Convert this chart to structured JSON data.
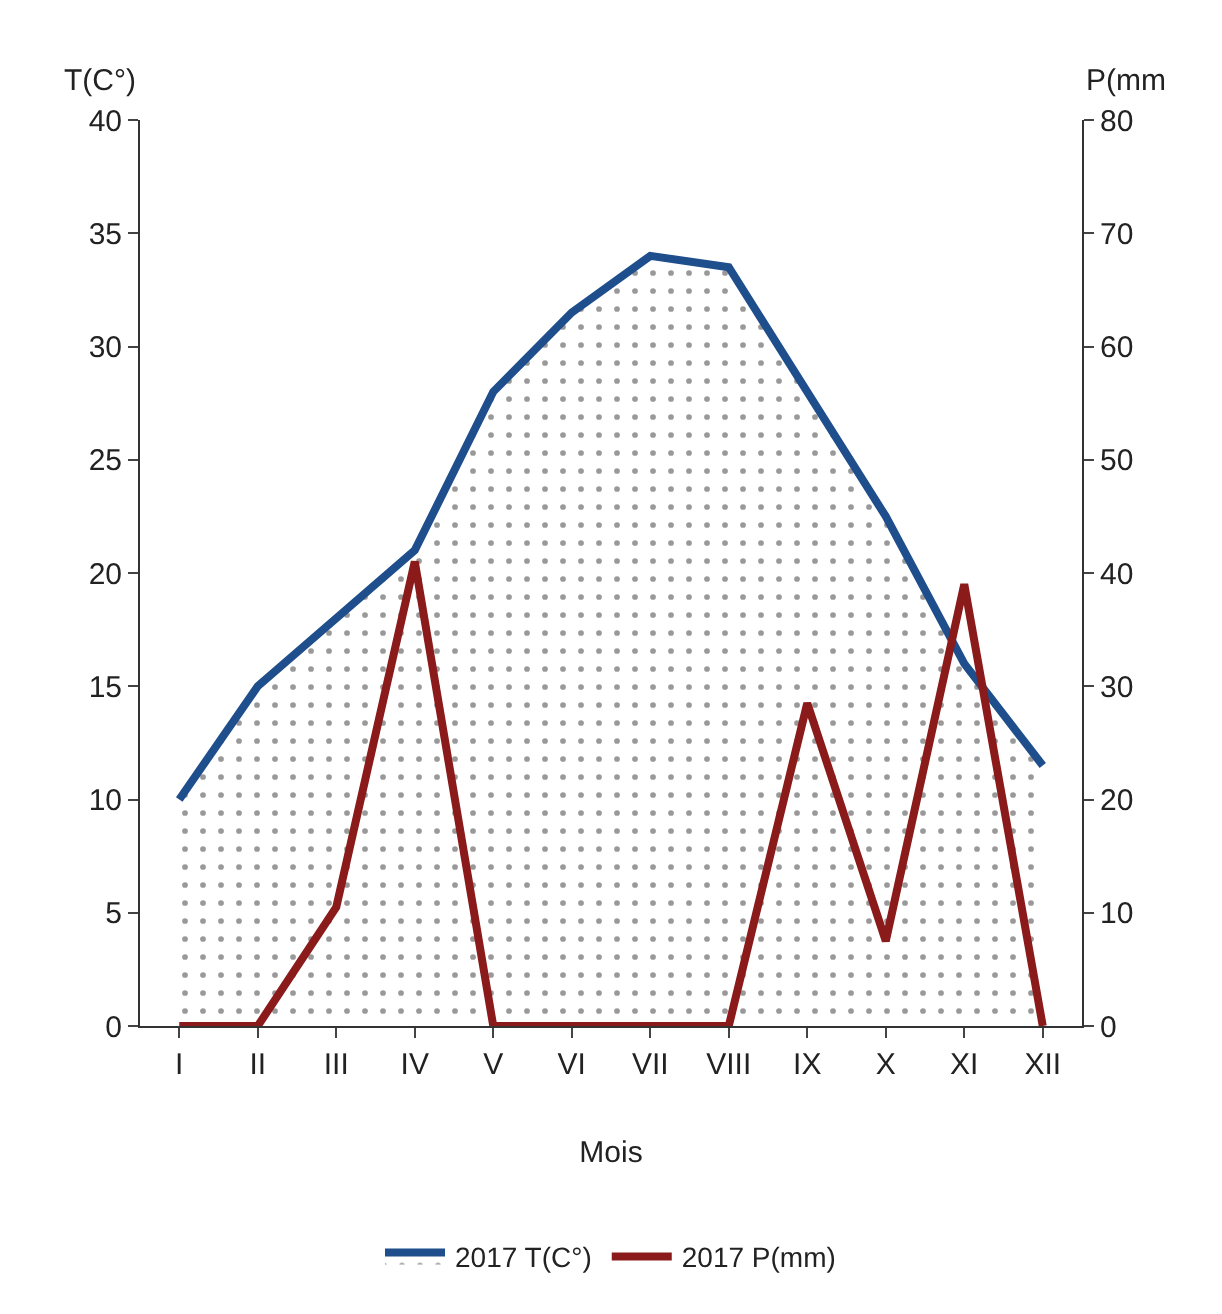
{
  "chart_data": {
    "type": "line",
    "xlabel": "Mois",
    "ylabel": "T(C°)",
    "y2label": "P(mm",
    "categories": [
      "I",
      "II",
      "III",
      "IV",
      "V",
      "VI",
      "VII",
      "VIII",
      "IX",
      "X",
      "XI",
      "XII"
    ],
    "series": [
      {
        "name": "2017 T(C°)",
        "type": "area",
        "color": "#1f4e8c",
        "values": [
          10,
          15,
          18,
          21,
          28,
          31.5,
          34,
          33.5,
          28,
          22.5,
          16,
          11.5
        ]
      },
      {
        "name": "2017 P(mm)",
        "axis": "y2",
        "color": "#8b1a1a",
        "values": [
          0,
          0,
          10.5,
          41,
          0,
          0,
          0,
          0,
          28.5,
          7.5,
          39,
          0
        ]
      }
    ],
    "ylim": [
      0,
      40
    ],
    "yticks": [
      0,
      5,
      10,
      15,
      20,
      25,
      30,
      35,
      40
    ],
    "y2lim": [
      0,
      80
    ],
    "y2ticks": [
      0,
      10,
      20,
      30,
      40,
      50,
      60,
      70,
      80
    ],
    "legend": "bottom",
    "marker": "none",
    "line_style": "solid"
  }
}
